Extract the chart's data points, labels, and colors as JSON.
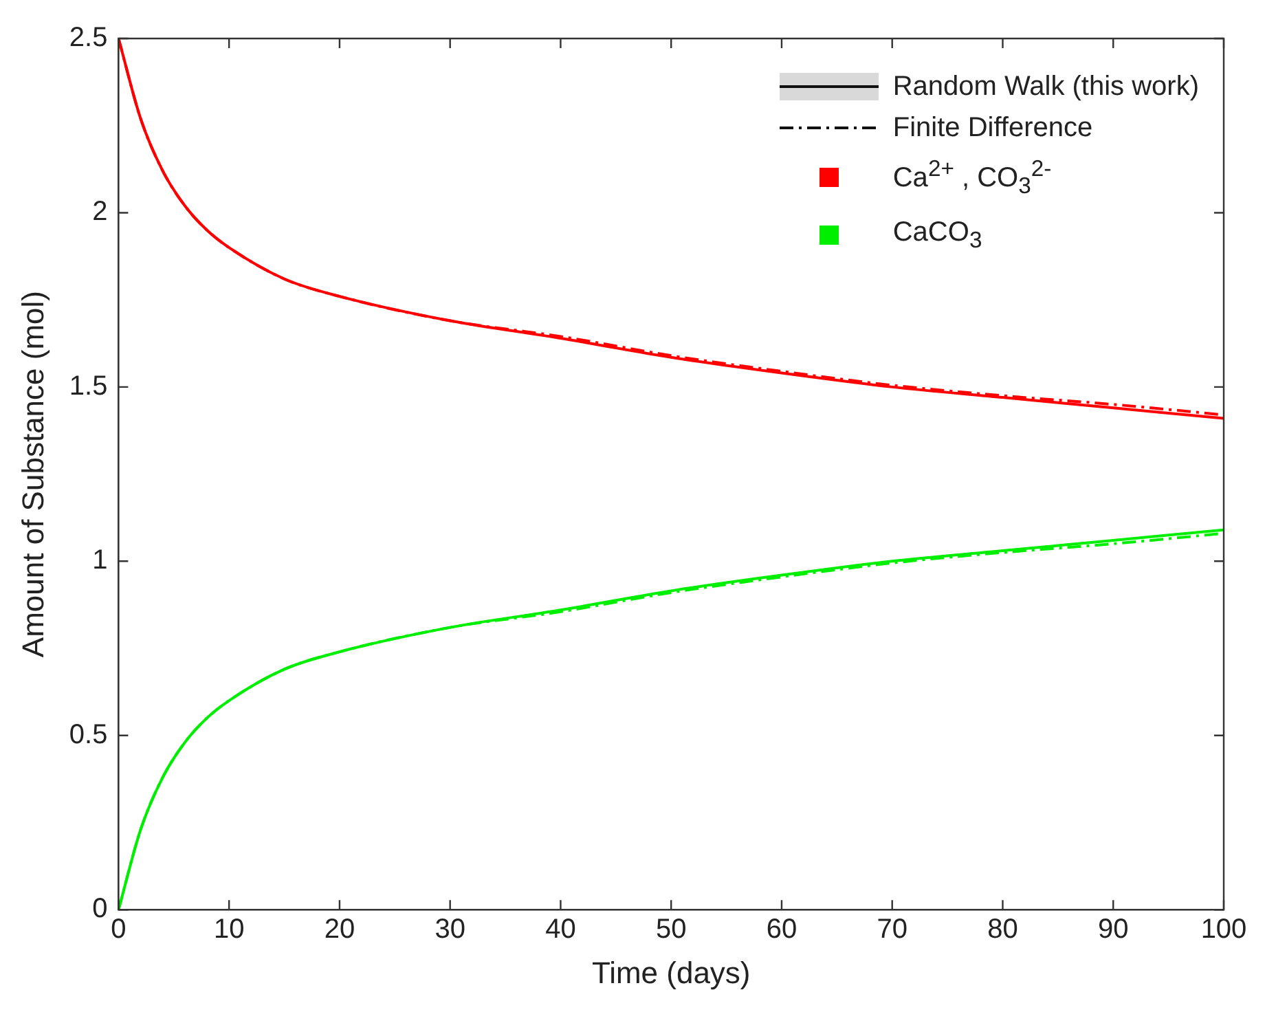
{
  "chart_data": {
    "type": "line",
    "xlabel": "Time (days)",
    "ylabel": "Amount of Substance (mol)",
    "xlim": [
      0,
      100
    ],
    "xticks": [
      0,
      10,
      20,
      30,
      40,
      50,
      60,
      70,
      80,
      90,
      100
    ],
    "ylim": [
      0,
      2.5
    ],
    "yticks": [
      0,
      0.5,
      1,
      1.5,
      2,
      2.5
    ],
    "grid": false,
    "legend": "top right",
    "marker": "none",
    "annotations": [
      "Random Walk (this work)",
      "Finite Difference"
    ],
    "x": [
      0,
      2,
      4,
      6,
      8,
      10,
      15,
      20,
      30,
      40,
      50,
      60,
      70,
      80,
      90,
      100
    ],
    "series": [
      {
        "name": "Ca$^{2+}$ , CO$_{3}$$^{2-}$",
        "color": "#ff0000",
        "line_style": "solid",
        "values": [
          2.5,
          2.27,
          2.12,
          2.02,
          1.95,
          1.9,
          1.81,
          1.76,
          1.69,
          1.64,
          1.585,
          1.54,
          1.5,
          1.47,
          1.44,
          1.41
        ]
      },
      {
        "color": "#ff0000",
        "line_style": "dashed",
        "values": [
          2.5,
          2.27,
          2.12,
          2.02,
          1.95,
          1.9,
          1.81,
          1.76,
          1.69,
          1.645,
          1.59,
          1.545,
          1.505,
          1.475,
          1.45,
          1.42
        ]
      },
      {
        "name": "CaCO$_{3}$",
        "color": "#00ee00",
        "line_style": "solid",
        "values": [
          0,
          0.23,
          0.38,
          0.48,
          0.55,
          0.6,
          0.69,
          0.74,
          0.81,
          0.86,
          0.915,
          0.96,
          1,
          1.03,
          1.06,
          1.09
        ]
      },
      {
        "color": "#00ee00",
        "line_style": "dashed",
        "values": [
          0,
          0.23,
          0.38,
          0.48,
          0.55,
          0.6,
          0.69,
          0.74,
          0.81,
          0.855,
          0.91,
          0.955,
          0.995,
          1.025,
          1.05,
          1.08
        ]
      }
    ]
  }
}
